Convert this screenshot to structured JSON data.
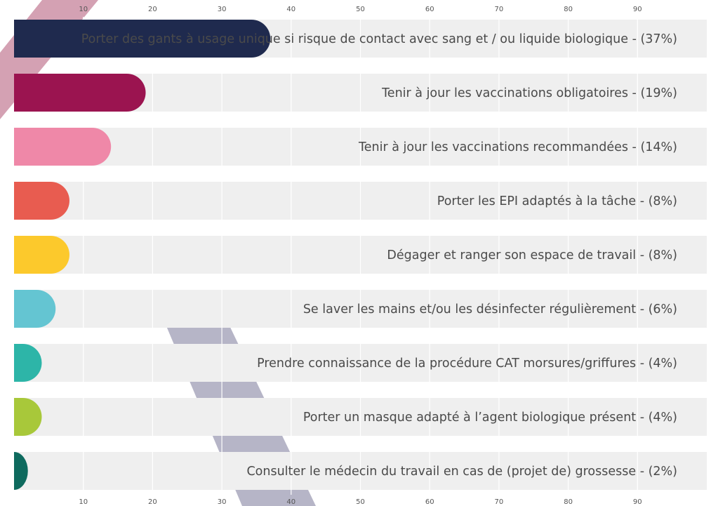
{
  "chart_data": {
    "type": "bar",
    "orientation": "horizontal",
    "categories": [
      "Porter des gants à usage unique si risque de contact avec sang et / ou liquide biologique - (37%)",
      "Tenir à jour les vaccinations obligatoires - (19%)",
      "Tenir à jour les vaccinations recommandées - (14%)",
      "Porter les EPI adaptés à la tâche - (8%)",
      "Dégager et ranger son espace de travail - (8%)",
      "Se laver les mains et/ou les désinfecter régulièrement - (6%)",
      "Prendre connaissance de la procédure CAT morsures/griffures - (4%)",
      "Porter un masque adapté à l’agent biologique présent - (4%)",
      "Consulter le médecin du travail en cas de (projet de) grossesse - (2%)"
    ],
    "values": [
      37,
      19,
      14,
      8,
      8,
      6,
      4,
      4,
      2
    ],
    "colors": [
      "#1f2a4e",
      "#9b1450",
      "#ef88a8",
      "#e85c50",
      "#fcc92c",
      "#64c5d2",
      "#2db5a8",
      "#a8c83a",
      "#0e6a5e"
    ],
    "xlim": [
      0,
      100
    ],
    "xticks": [
      10,
      20,
      30,
      40,
      50,
      60,
      70,
      80,
      90
    ],
    "grid": true
  }
}
